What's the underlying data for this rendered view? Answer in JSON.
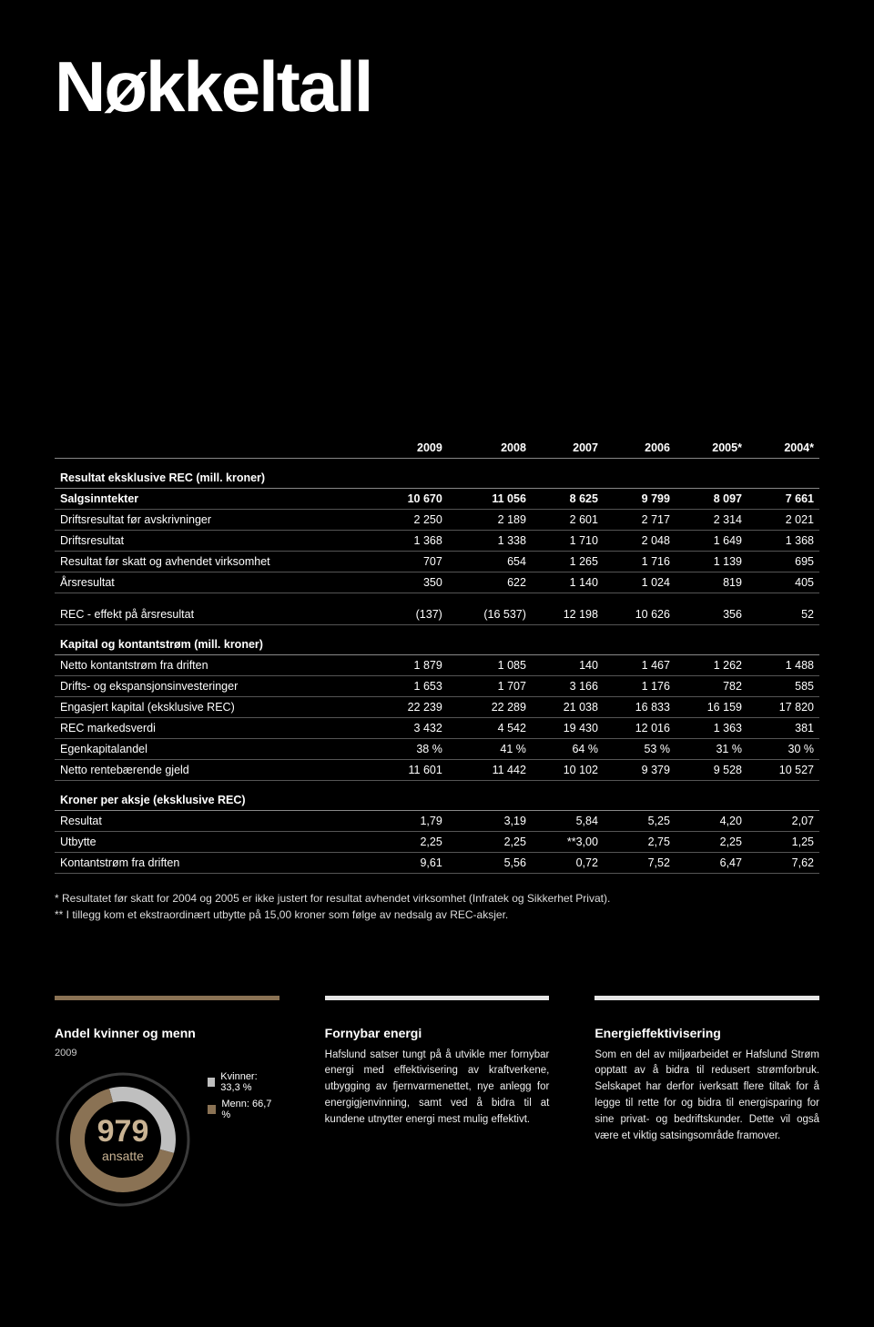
{
  "page_title": "Nøkkeltall",
  "table": {
    "headers": [
      "",
      "2009",
      "2008",
      "2007",
      "2006",
      "2005*",
      "2004*"
    ],
    "sections": [
      {
        "title": "Resultat eksklusive REC (mill. kroner)",
        "bold_first": true,
        "rows": [
          [
            "Salgsinntekter",
            "10 670",
            "11 056",
            "8 625",
            "9 799",
            "8 097",
            "7 661"
          ],
          [
            "Driftsresultat før avskrivninger",
            "2 250",
            "2 189",
            "2 601",
            "2 717",
            "2 314",
            "2 021"
          ],
          [
            "Driftsresultat",
            "1 368",
            "1 338",
            "1 710",
            "2 048",
            "1 649",
            "1 368"
          ],
          [
            "Resultat før skatt og avhendet virksomhet",
            "707",
            "654",
            "1 265",
            "1 716",
            "1 139",
            "695"
          ],
          [
            "Årsresultat",
            "350",
            "622",
            "1 140",
            "1 024",
            "819",
            "405"
          ]
        ]
      },
      {
        "title": "",
        "rows": [
          [
            "REC - effekt på årsresultat",
            "(137)",
            "(16 537)",
            "12 198",
            "10 626",
            "356",
            "52"
          ]
        ]
      },
      {
        "title": "Kapital og kontantstrøm (mill. kroner)",
        "rows": [
          [
            "Netto kontantstrøm fra driften",
            "1 879",
            "1 085",
            "140",
            "1 467",
            "1 262",
            "1 488"
          ],
          [
            "Drifts- og ekspansjonsinvesteringer",
            "1 653",
            "1 707",
            "3 166",
            "1 176",
            "782",
            "585"
          ],
          [
            "Engasjert kapital (eksklusive REC)",
            "22 239",
            "22 289",
            "21 038",
            "16 833",
            "16 159",
            "17 820"
          ],
          [
            "REC markedsverdi",
            "3 432",
            "4 542",
            "19 430",
            "12 016",
            "1 363",
            "381"
          ],
          [
            "Egenkapitalandel",
            "38 %",
            "41 %",
            "64 %",
            "53 %",
            "31 %",
            "30 %"
          ],
          [
            "Netto rentebærende gjeld",
            "11 601",
            "11 442",
            "10 102",
            "9 379",
            "9 528",
            "10 527"
          ]
        ]
      },
      {
        "title": "Kroner per aksje (eksklusive REC)",
        "rows": [
          [
            "Resultat",
            "1,79",
            "3,19",
            "5,84",
            "5,25",
            "4,20",
            "2,07"
          ],
          [
            "Utbytte",
            "2,25",
            "2,25",
            "**3,00",
            "2,75",
            "2,25",
            "1,25"
          ],
          [
            "Kontantstrøm fra driften",
            "9,61",
            "5,56",
            "0,72",
            "7,52",
            "6,47",
            "7,62"
          ]
        ]
      }
    ]
  },
  "footnote1": "* Resultatet før skatt for 2004 og 2005 er ikke justert for resultat avhendet virksomhet (Infratek og Sikkerhet Privat).",
  "footnote2": "** I tillegg kom et ekstraordinært utbytte på 15,00 kroner som følge av nedsalg av REC-aksjer.",
  "gender": {
    "title": "Andel kvinner og menn",
    "year": "2009",
    "count": "979",
    "count_label": "ansatte",
    "women_label": "Kvinner: 33,3 %",
    "men_label": "Menn: 66,7 %",
    "women_pct": 33.3,
    "men_pct": 66.7,
    "colors": {
      "women": "#bfbfbf",
      "men": "#8a7254",
      "track": "#3a3a3a",
      "center_text": "#c9b393",
      "bg": "#000000"
    },
    "donut": {
      "r_outer": 72,
      "r_ring_outer": 58,
      "r_ring_inner": 42,
      "r_inner_hole": 40
    }
  },
  "renewable": {
    "title": "Fornybar energi",
    "body": "Hafslund satser tungt på å utvikle mer fornybar energi med effektivisering av kraftverkene, utbygging av fjernvarmenettet, nye anlegg for energigjenvinning, samt ved å bidra til at kundene utnytter energi mest mulig effektivt.",
    "bar_color": "#e5e5e5"
  },
  "efficiency": {
    "title": "Energieffektivisering",
    "body": "Som en del av miljøarbeidet er Hafslund Strøm opptatt av å bidra til redusert strømforbruk. Selskapet har derfor iverksatt flere tiltak for å legge til rette for og bidra til energisparing for sine privat- og bedriftskunder. Dette vil også være et viktig satsingsområde framover.",
    "bar_color": "#e5e5e5"
  }
}
